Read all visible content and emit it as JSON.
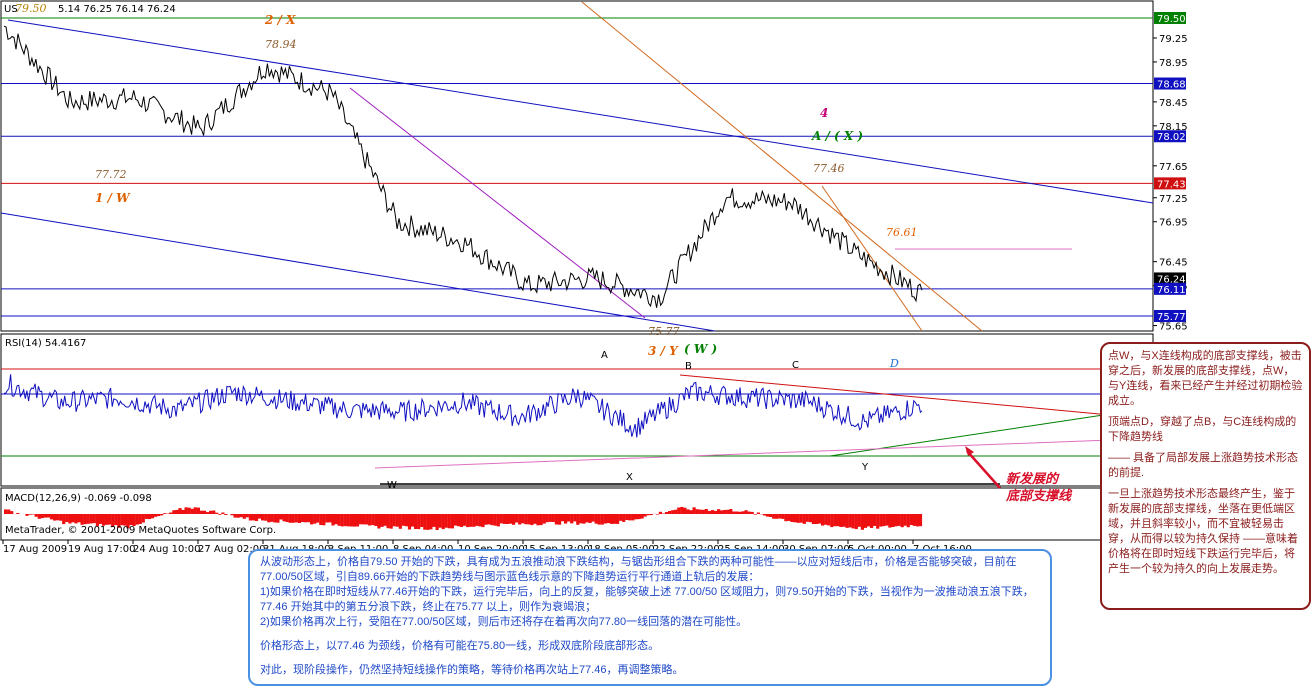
{
  "header": {
    "symbol": "US",
    "ohlc": "5.14 76.25 76.14 76.24",
    "top_price": "79.50"
  },
  "price_axis": {
    "ticks": [
      "79.25",
      "78.95",
      "78.45",
      "78.15",
      "77.65",
      "77.25",
      "76.95",
      "76.45",
      "76.15",
      "75.65"
    ],
    "tags": [
      {
        "label": "79.50",
        "color": "#008000"
      },
      {
        "label": "78.68",
        "color": "#1010c0"
      },
      {
        "label": "78.02",
        "color": "#1010c0"
      },
      {
        "label": "77.43",
        "color": "#d01010"
      },
      {
        "label": "76.24",
        "color": "#000000"
      },
      {
        "label": "76.11",
        "color": "#1010c0"
      },
      {
        "label": "75.77",
        "color": "#1010c0"
      }
    ]
  },
  "wave_labels": {
    "wave_2x": "2 / X",
    "price_7894": "78.94",
    "price_7772": "77.72",
    "wave_1w": "1 / W",
    "wave_4": "4",
    "wave_ax": "A / ( X )",
    "price_7746": "77.46",
    "price_7661": "76.61",
    "price_7577": "75.77",
    "wave_3y": "3 / Y",
    "wave_w": "( W )"
  },
  "rsi": {
    "title": "RSI(14) 54.4167",
    "points": {
      "A": "A",
      "B": "B",
      "C": "C",
      "D": "D",
      "W": "W",
      "X": "X",
      "Y": "Y"
    }
  },
  "macd": {
    "title": "MACD(12,26,9) -0.069 -0.098",
    "credit": "MetaTrader, © 2001-2009 MetaQuotes Software Corp."
  },
  "time_axis": [
    "17 Aug 2009",
    "19 Aug 17:00",
    "24 Aug 10:00",
    "27 Aug 02:00",
    "31 Aug 18:00",
    "3 Sep 11:00",
    "8 Sep 04:00",
    "10 Sep 20:00",
    "15 Sep 13:00",
    "18 Sep 05:00",
    "22 Sep 22:00",
    "25 Sep 14:00",
    "30 Sep 07:00",
    "5 Oct 00:00",
    "7 Oct 16:00"
  ],
  "main_note": {
    "p1": "从波动形态上，价格自79.50 开始的下跌，具有成为五浪推动浪下跌结构，与锯齿形组合下跌的两种可能性——以应对短线后市，价格是否能够突破，目前在77.00/50区域，引自89.66开始的下跌趋势线与图示蓝色线示意的下降趋势运行平行通道上轨后的发展：",
    "p2": "1)如果价格在即时短线从77.46开始的下跌，运行完毕后，向上的反复，能够突破上述 77.00/50 区域阻力，则79.50开始的下跌，当视作为一波推动浪五浪下跌，77.46 开始其中的第五分浪下跌，终止在75.77 以上，则作为衰竭浪；",
    "p3": "2)如果价格再次上行，受阻在77.00/50区域，则后市还将存在着再次向77.80一线回落的潜在可能性。",
    "p4": "价格形态上，以77.46 为颈线，价格有可能在75.80一线，形成双底阶段底部形态。",
    "p5": "对此，现阶段操作，仍然坚持短线操作的策略，等待价格再次站上77.46，再调整策略。"
  },
  "side_note": {
    "p1": "点W，与X连线构成的底部支撑线，被击穿之后，新发展的底部支撑线，点W，与Y连线，看来已经产生并经过初期检验成立。",
    "p2": "顶端点D，穿越了点B，与C连线构成的下降趋势线",
    "p3": "—— 具备了局部发展上涨趋势技术形态的前提.",
    "p4": "一旦上涨趋势技术形态最终产生，鉴于新发展的底部支撑线，坐落在更低端区域，并且斜率较小，而不宜被轻易击穿，从而得以较为持久保持 ——意味着价格将在即时短线下跌运行完毕后，将产生一个较为持久的向上发展走势。"
  },
  "callout": {
    "line1": "新发展的",
    "line2": "底部支撑线"
  },
  "chart_data": {
    "type": "line",
    "title": "",
    "xlabel": "",
    "ylabel": "",
    "ylim": [
      75.55,
      79.55
    ],
    "x": [
      "17 Aug 2009",
      "19 Aug 17:00",
      "24 Aug 10:00",
      "27 Aug 02:00",
      "31 Aug 18:00",
      "3 Sep 11:00",
      "8 Sep 04:00",
      "10 Sep 20:00",
      "15 Sep 13:00",
      "18 Sep 05:00",
      "22 Sep 22:00",
      "25 Sep 14:00",
      "30 Sep 07:00",
      "5 Oct 00:00",
      "7 Oct 16:00"
    ],
    "series": [
      {
        "values": [
          79.4,
          78.45,
          78.5,
          78.1,
          78.9,
          78.55,
          76.95,
          76.7,
          76.15,
          76.25,
          76.0,
          77.25,
          77.2,
          76.55,
          76.05
        ]
      }
    ],
    "horizontal_levels": [
      79.5,
      78.68,
      78.02,
      77.43,
      76.11,
      75.77
    ],
    "marked_prices": [
      79.5,
      78.94,
      77.72,
      77.46,
      76.61,
      75.77,
      76.24
    ],
    "rsi_value": 54.4167,
    "rsi_series": [
      68,
      55,
      58,
      50,
      62,
      56,
      50,
      49,
      55,
      45,
      60,
      38,
      62,
      58,
      56,
      42,
      54
    ],
    "macd_values": [
      -0.069,
      -0.098
    ],
    "macd_hist": [
      0.02,
      -0.05,
      -0.07,
      0.04,
      -0.03,
      -0.05,
      -0.07,
      -0.08,
      -0.06,
      -0.05,
      -0.05,
      0.03,
      0.02,
      -0.05,
      -0.08,
      -0.06
    ]
  }
}
